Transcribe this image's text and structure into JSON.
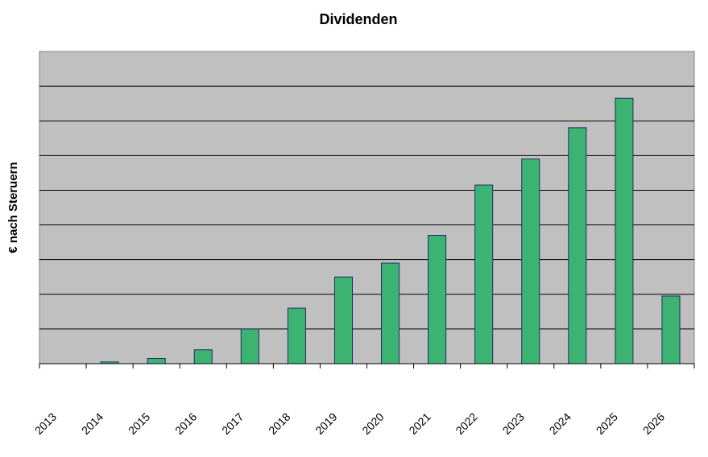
{
  "chart_data": {
    "type": "bar",
    "title": "Dividenden",
    "ylabel": "€ nach Steruern",
    "xlabel": "",
    "categories": [
      "2013",
      "2014",
      "2015",
      "2016",
      "2017",
      "2018",
      "2019",
      "2020",
      "2021",
      "2022",
      "2023",
      "2024",
      "2025",
      "2026"
    ],
    "values": [
      0,
      0.05,
      0.15,
      0.4,
      1.0,
      1.6,
      2.5,
      2.9,
      3.7,
      5.15,
      5.9,
      6.8,
      7.65,
      1.95
    ],
    "ylim": [
      0,
      9
    ],
    "grid": true,
    "legend": "none",
    "colors": {
      "bar_fill": "#3cb371",
      "bar_stroke": "#1f2a6b",
      "plot_bg": "#c0c0c0",
      "gridline": "#000000"
    }
  }
}
